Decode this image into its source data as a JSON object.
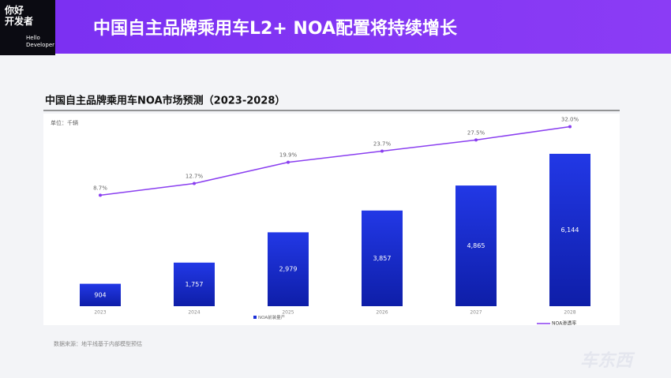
{
  "header": {
    "logo": [
      "你好",
      "开发者",
      "Hello",
      "Developer"
    ],
    "title": "中国自主品牌乘用车L2+ NOA配置将持续增长"
  },
  "chart_data": {
    "type": "bar",
    "title": "中国自主品牌乘用车NOA市场预测（2023-2028）",
    "unit": "单位：千辆",
    "categories": [
      "2023",
      "2024",
      "2025",
      "2026",
      "2027",
      "2028"
    ],
    "series": [
      {
        "name": "NOA前装量产",
        "type": "bar",
        "color": "#1c30d8",
        "values": [
          904,
          1757,
          2979,
          3857,
          4865,
          6144
        ],
        "value_labels": [
          "904",
          "1,757",
          "2,979",
          "3,857",
          "4,865",
          "6,144"
        ]
      },
      {
        "name": "NOA渗透率",
        "type": "line",
        "axis": "y2",
        "color": "#8a3ff0",
        "values": [
          8.7,
          12.7,
          19.9,
          23.7,
          27.5,
          32.0
        ],
        "value_labels": [
          "8.7%",
          "12.7%",
          "19.9%",
          "23.7%",
          "27.5%",
          "32.0%"
        ]
      }
    ],
    "ylim": [
      0,
      7000
    ],
    "y2lim": [
      -29,
      30
    ]
  },
  "footer": {
    "source": "数据来源：地平线基于内部模型预估",
    "watermark": "车东西"
  }
}
